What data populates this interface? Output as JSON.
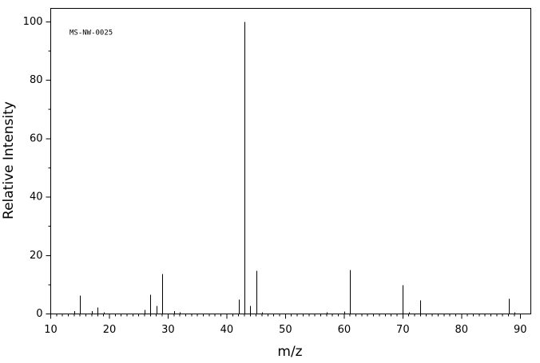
{
  "chart_data": {
    "type": "bar",
    "annotation": "MS-NW-0025",
    "x_label": "m/z",
    "y_label": "Relative Intensity",
    "x": [
      14,
      15,
      17,
      18,
      19,
      26,
      27,
      28,
      29,
      31,
      32,
      42,
      43,
      44,
      45,
      46,
      57,
      60,
      61,
      70,
      71,
      73,
      88,
      89
    ],
    "values": [
      1,
      6.3,
      1,
      2.2,
      0.5,
      1.4,
      6.6,
      2.7,
      13.7,
      1,
      0.5,
      4.9,
      100,
      2.7,
      14.8,
      0.5,
      0.5,
      0.8,
      15,
      9.8,
      0.5,
      4.6,
      5.2,
      0.5
    ],
    "color": "#000000",
    "xlim": [
      10,
      91.8
    ],
    "ylim": [
      0,
      104.6
    ],
    "xticks": [
      10,
      20,
      30,
      40,
      50,
      60,
      70,
      80,
      90
    ],
    "yticks": [
      0,
      20,
      40,
      60,
      80,
      100
    ],
    "grid": false
  }
}
